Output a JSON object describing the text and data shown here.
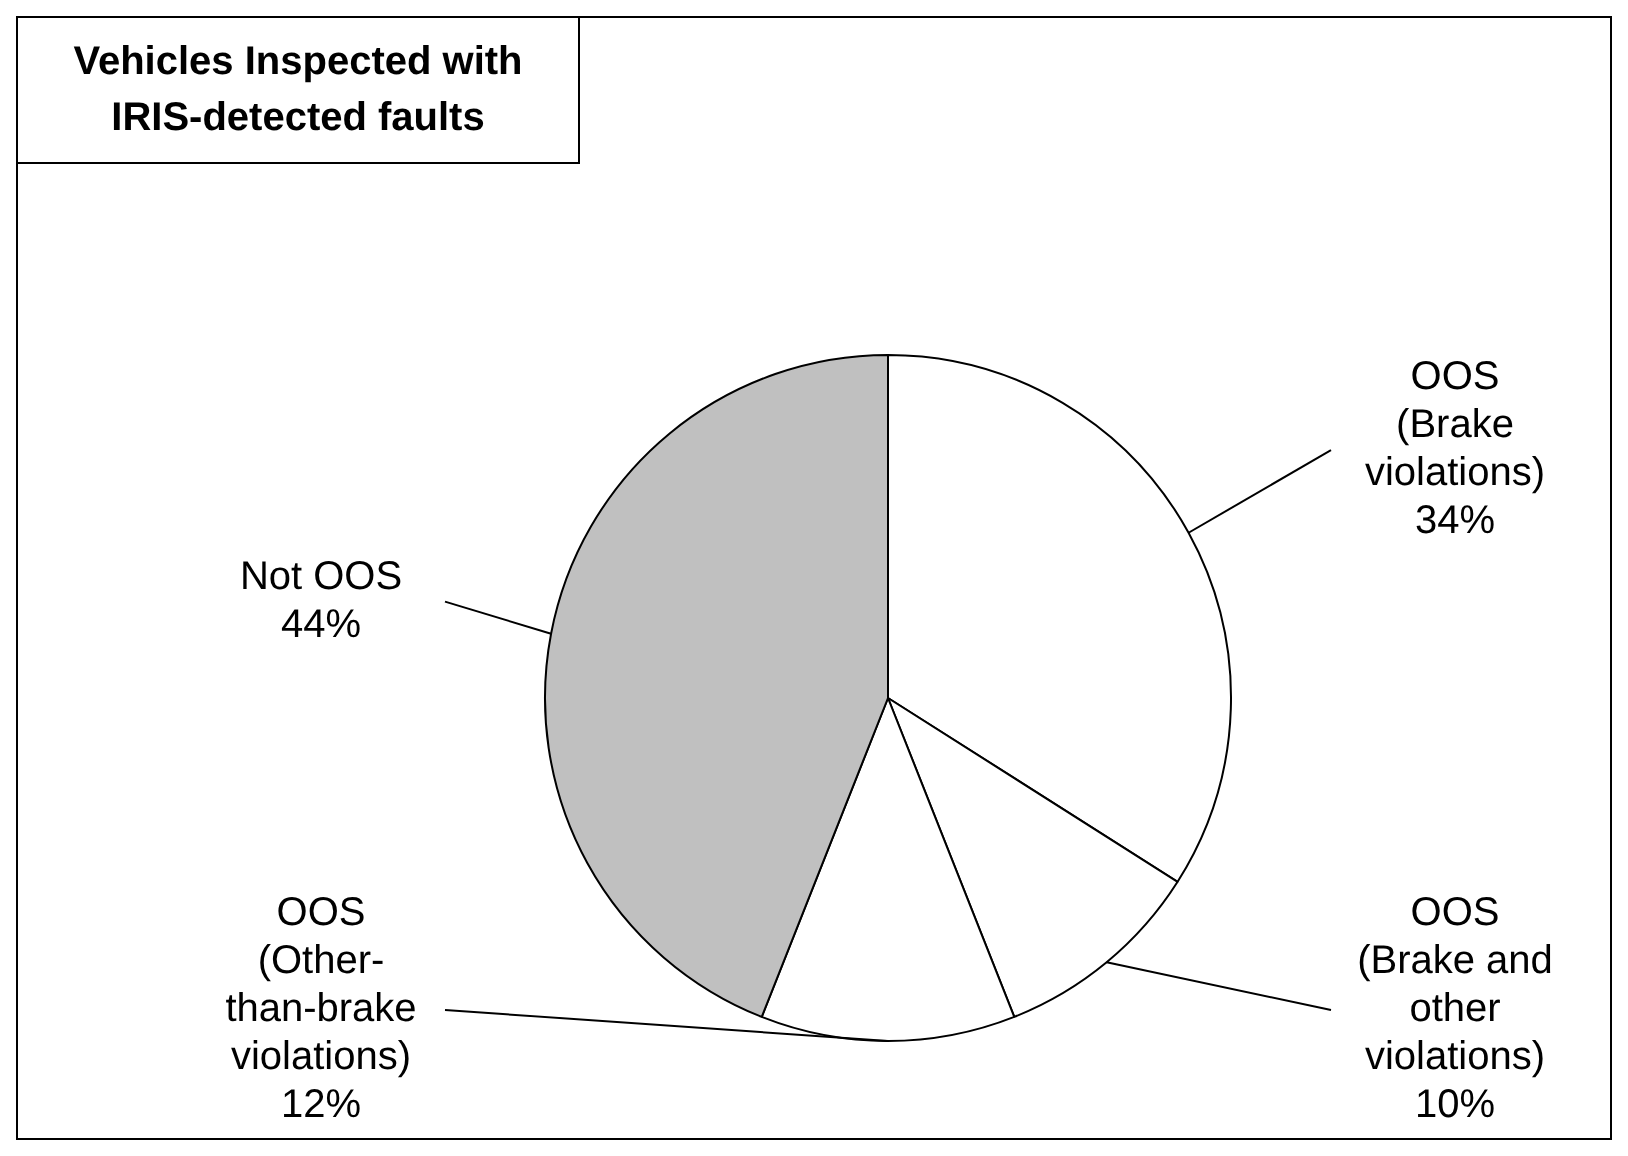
{
  "chart_data": {
    "type": "pie",
    "title": "Vehicles Inspected with IRIS-detected faults",
    "categories": [
      "OOS (Brake violations)",
      "OOS (Brake and other violations)",
      "OOS (Other-than-brake violations)",
      "Not OOS"
    ],
    "values": [
      34,
      10,
      12,
      44
    ],
    "colors": [
      "#ffffff",
      "#ffffff",
      "#ffffff",
      "#c0c0c0"
    ],
    "value_labels": [
      "34%",
      "10%",
      "12%",
      "44%"
    ],
    "legend": false
  }
}
